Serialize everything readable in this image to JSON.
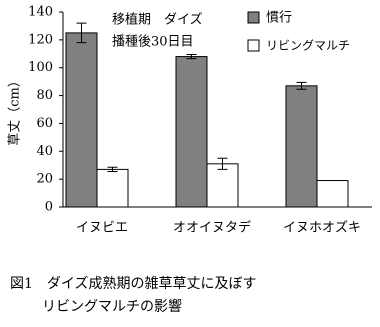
{
  "chart_data": {
    "type": "bar",
    "y_label": "草丈（cm）",
    "annotations": [
      "移植期　ダイズ",
      "播種後30日目"
    ],
    "caption": [
      "図1　ダイズ成熟期の雑草草丈に及ぼす",
      "リビングマルチの影響"
    ],
    "categories": [
      "イヌビエ",
      "オオイヌタデ",
      "イヌホオズキ"
    ],
    "series": [
      {
        "name": "慣行",
        "color": "#808080",
        "values": [
          125,
          108,
          87
        ],
        "errors": [
          7,
          1.5,
          2.5
        ]
      },
      {
        "name": "リビングマルチ",
        "color": "#ffffff",
        "values": [
          27,
          31,
          19
        ],
        "errors": [
          1.5,
          4,
          null
        ]
      }
    ],
    "ylim": [
      0,
      140
    ],
    "yticks": [
      0,
      20,
      40,
      60,
      80,
      100,
      120,
      140
    ],
    "legend": "upper right"
  }
}
